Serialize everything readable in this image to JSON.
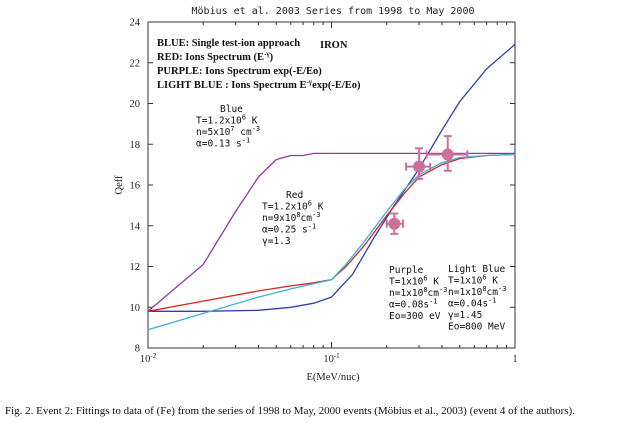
{
  "chart_data": {
    "type": "line",
    "title": "Möbius et al. 2003    Series from 1998 to May 2000",
    "xlabel": "E(MeV/nuc)",
    "ylabel": "Qeff",
    "xscale": "log",
    "xlim": [
      0.01,
      1
    ],
    "ylim": [
      8,
      24
    ],
    "x_ticks": [
      {
        "value": 0.01,
        "base": "10",
        "exp": "-2"
      },
      {
        "value": 0.1,
        "base": "10",
        "exp": "-1"
      },
      {
        "value": 1,
        "base": "1",
        "exp": ""
      }
    ],
    "y_ticks": [
      8,
      10,
      12,
      14,
      16,
      18,
      20,
      22,
      24
    ],
    "element_label": "IRON",
    "legend": [
      {
        "label_pre": "BLUE:  Single test-ion approach",
        "sup": "",
        "label_post": ""
      },
      {
        "label_pre": "RED: Ions Spectrum (E",
        "sup": "-γ",
        "label_post": ")"
      },
      {
        "label_pre": "PURPLE: Ions Spectrum   exp(-E/Eo)",
        "sup": "",
        "label_post": ""
      },
      {
        "label_pre": "LIGHT BLUE : Ions Spectrum E",
        "sup": "-γ",
        "label_post": "exp(-E/Eo)"
      }
    ],
    "series": [
      {
        "name": "Blue",
        "color": "#2f3fb0",
        "x": [
          0.01,
          0.02,
          0.04,
          0.06,
          0.08,
          0.1,
          0.13,
          0.17,
          0.22,
          0.3,
          0.4,
          0.5,
          0.7,
          1.0
        ],
        "y": [
          9.8,
          9.8,
          9.85,
          10.0,
          10.2,
          10.5,
          11.6,
          13.4,
          15.0,
          16.8,
          18.7,
          20.1,
          21.7,
          22.9
        ]
      },
      {
        "name": "Red",
        "color": "#d4271f",
        "x": [
          0.01,
          0.02,
          0.04,
          0.06,
          0.08,
          0.1,
          0.12,
          0.15,
          0.2,
          0.25,
          0.3,
          0.4,
          0.5,
          0.7,
          1.0
        ],
        "y": [
          9.8,
          10.3,
          10.8,
          11.05,
          11.2,
          11.35,
          12.0,
          13.0,
          14.5,
          15.6,
          16.4,
          17.0,
          17.3,
          17.45,
          17.5
        ]
      },
      {
        "name": "Purple",
        "color": "#8e3aa8",
        "x": [
          0.01,
          0.02,
          0.03,
          0.04,
          0.05,
          0.06,
          0.07,
          0.08,
          0.09,
          0.1,
          0.2,
          0.5,
          1.0
        ],
        "y": [
          9.8,
          12.1,
          14.7,
          16.4,
          17.25,
          17.45,
          17.45,
          17.55,
          17.55,
          17.55,
          17.55,
          17.55,
          17.55
        ]
      },
      {
        "name": "Light Blue",
        "color": "#3ab2d6",
        "x": [
          0.01,
          0.02,
          0.04,
          0.06,
          0.08,
          0.1,
          0.12,
          0.15,
          0.2,
          0.25,
          0.3,
          0.4,
          0.5,
          0.7,
          1.0
        ],
        "y": [
          8.9,
          9.7,
          10.5,
          10.9,
          11.15,
          11.35,
          12.1,
          13.2,
          14.7,
          15.8,
          16.5,
          17.1,
          17.35,
          17.45,
          17.5
        ]
      }
    ],
    "data_points": [
      {
        "x": 0.22,
        "y": 14.1,
        "xerr": [
          0.2,
          0.245
        ],
        "yerr": [
          13.6,
          14.6
        ]
      },
      {
        "x": 0.3,
        "y": 16.9,
        "xerr": [
          0.255,
          0.345
        ],
        "yerr": [
          16.3,
          17.8
        ]
      },
      {
        "x": 0.43,
        "y": 17.5,
        "xerr": [
          0.33,
          0.55
        ],
        "yerr": [
          16.7,
          18.4
        ]
      }
    ],
    "point_color": "#cf6e98",
    "annotations": [
      {
        "id": "blue",
        "lines": [
          [
            {
              "t": "Blue"
            }
          ],
          [
            {
              "t": "T=1.2x10"
            },
            {
              "t": "6",
              "sup": true
            },
            {
              "t": " K"
            }
          ],
          [
            {
              "t": "n=5x10"
            },
            {
              "t": "7",
              "sup": true
            },
            {
              "t": " cm"
            },
            {
              "t": "-3",
              "sup": true
            }
          ],
          [
            {
              "t": "α=0.13 s"
            },
            {
              "t": "-1",
              "sup": true
            }
          ]
        ]
      },
      {
        "id": "red",
        "lines": [
          [
            {
              "t": "Red"
            }
          ],
          [
            {
              "t": "T=1.2x10"
            },
            {
              "t": "6",
              "sup": true
            },
            {
              "t": " K"
            }
          ],
          [
            {
              "t": "n=9x10"
            },
            {
              "t": "8",
              "sup": true
            },
            {
              "t": "cm"
            },
            {
              "t": "-3",
              "sup": true
            }
          ],
          [
            {
              "t": "α=0.25 s"
            },
            {
              "t": "-1",
              "sup": true
            }
          ],
          [
            {
              "t": "γ=1.3"
            }
          ]
        ]
      },
      {
        "id": "purple",
        "lines": [
          [
            {
              "t": "Purple"
            }
          ],
          [
            {
              "t": "T=1x10"
            },
            {
              "t": "6",
              "sup": true
            },
            {
              "t": " K"
            }
          ],
          [
            {
              "t": "n=1x10"
            },
            {
              "t": "8",
              "sup": true
            },
            {
              "t": "cm"
            },
            {
              "t": "-3",
              "sup": true
            }
          ],
          [
            {
              "t": "α=0.08s"
            },
            {
              "t": "-1",
              "sup": true
            }
          ],
          [
            {
              "t": "Eo=300 eV"
            }
          ]
        ]
      },
      {
        "id": "lightblue",
        "lines": [
          [
            {
              "t": "Light Blue"
            }
          ],
          [
            {
              "t": "T=1x10"
            },
            {
              "t": "6",
              "sup": true
            },
            {
              "t": " K"
            }
          ],
          [
            {
              "t": "n=1x10"
            },
            {
              "t": "8",
              "sup": true
            },
            {
              "t": "cm"
            },
            {
              "t": "-3",
              "sup": true
            }
          ],
          [
            {
              "t": "α=0.04s"
            },
            {
              "t": "-1",
              "sup": true
            }
          ],
          [
            {
              "t": "γ=1.45"
            }
          ],
          [
            {
              "t": "Eo=800 MeV"
            }
          ]
        ]
      }
    ]
  },
  "caption": "Fig. 2. Event 2: Fittings to data of (Fe) from the  series of 1998 to  May, 2000 events (Möbius et al., 2003) (event 4 of the authors)."
}
